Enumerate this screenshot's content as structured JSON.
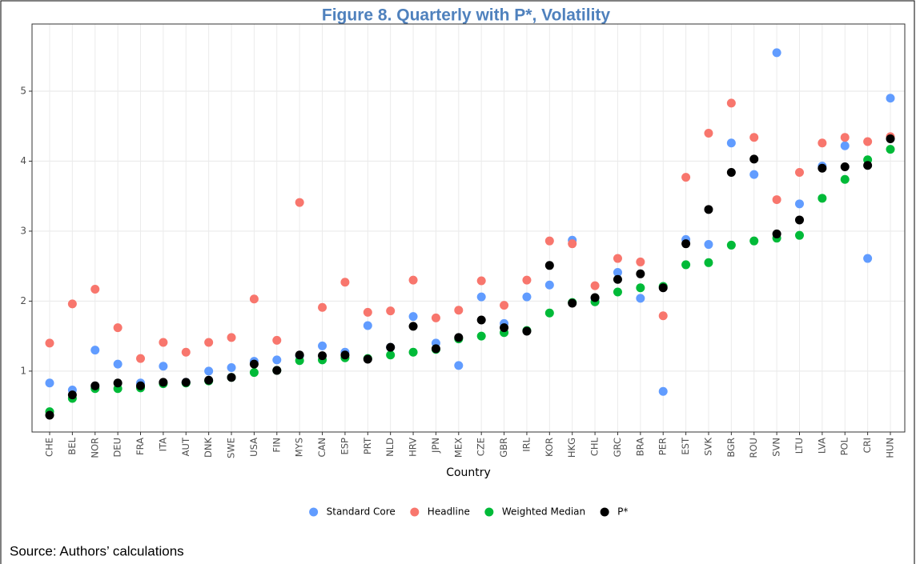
{
  "chart_data": {
    "type": "scatter",
    "title": "Figure 8. Quarterly with P*, Volatility",
    "x_label": "Country",
    "source": "Source: Authors’ calculations",
    "categories": [
      "CHE",
      "BEL",
      "NOR",
      "DEU",
      "FRA",
      "ITA",
      "AUT",
      "DNK",
      "SWE",
      "USA",
      "FIN",
      "MYS",
      "CAN",
      "ESP",
      "PRT",
      "NLD",
      "HRV",
      "JPN",
      "MEX",
      "CZE",
      "GBR",
      "IRL",
      "KOR",
      "HKG",
      "CHL",
      "GRC",
      "BRA",
      "PER",
      "EST",
      "SVK",
      "BGR",
      "ROU",
      "SVN",
      "LTU",
      "LVA",
      "POL",
      "CRI",
      "HUN"
    ],
    "series": [
      {
        "name": "Standard Core",
        "color": "#619CFF",
        "values": [
          0.83,
          0.73,
          1.3,
          1.1,
          0.83,
          1.07,
          0.84,
          1.0,
          1.05,
          1.14,
          1.16,
          1.22,
          1.36,
          1.27,
          1.65,
          1.34,
          1.78,
          1.4,
          1.08,
          2.06,
          1.68,
          2.06,
          2.23,
          2.87,
          2.04,
          2.41,
          2.04,
          0.71,
          2.88,
          2.81,
          4.26,
          3.81,
          5.55,
          3.39,
          3.93,
          4.22,
          2.61,
          4.9
        ]
      },
      {
        "name": "Headline",
        "color": "#F8766D",
        "values": [
          1.4,
          1.96,
          2.17,
          1.62,
          1.18,
          1.41,
          1.27,
          1.41,
          1.48,
          2.03,
          1.44,
          3.41,
          1.91,
          2.27,
          1.84,
          1.86,
          2.3,
          1.76,
          1.87,
          2.29,
          1.94,
          2.3,
          2.86,
          2.82,
          2.22,
          2.61,
          2.56,
          1.79,
          3.77,
          4.4,
          4.83,
          4.34,
          3.45,
          3.84,
          4.26,
          4.34,
          4.28,
          4.35
        ]
      },
      {
        "name": "Weighted Median",
        "color": "#00BA38",
        "values": [
          0.42,
          0.61,
          0.75,
          0.75,
          0.76,
          0.82,
          0.83,
          0.86,
          0.91,
          0.98,
          1.01,
          1.15,
          1.16,
          1.19,
          1.18,
          1.23,
          1.27,
          1.31,
          1.46,
          1.5,
          1.55,
          1.58,
          1.83,
          1.98,
          1.99,
          2.13,
          2.19,
          2.21,
          2.52,
          2.55,
          2.8,
          2.86,
          2.9,
          2.94,
          3.47,
          3.74,
          4.02,
          4.17
        ]
      },
      {
        "name": "P*",
        "color": "#000000",
        "values": [
          0.37,
          0.66,
          0.79,
          0.83,
          0.79,
          0.84,
          0.84,
          0.87,
          0.91,
          1.1,
          1.01,
          1.23,
          1.22,
          1.23,
          1.17,
          1.34,
          1.64,
          1.32,
          1.48,
          1.73,
          1.62,
          1.57,
          2.51,
          1.97,
          2.05,
          2.31,
          2.39,
          2.19,
          2.82,
          3.31,
          3.84,
          4.03,
          2.96,
          3.16,
          3.9,
          3.92,
          3.94,
          4.32
        ]
      }
    ],
    "ylim": [
      0.13,
      5.96
    ],
    "yticks": [
      1,
      2,
      3,
      4,
      5
    ],
    "grid": true,
    "legend": "bottom"
  }
}
